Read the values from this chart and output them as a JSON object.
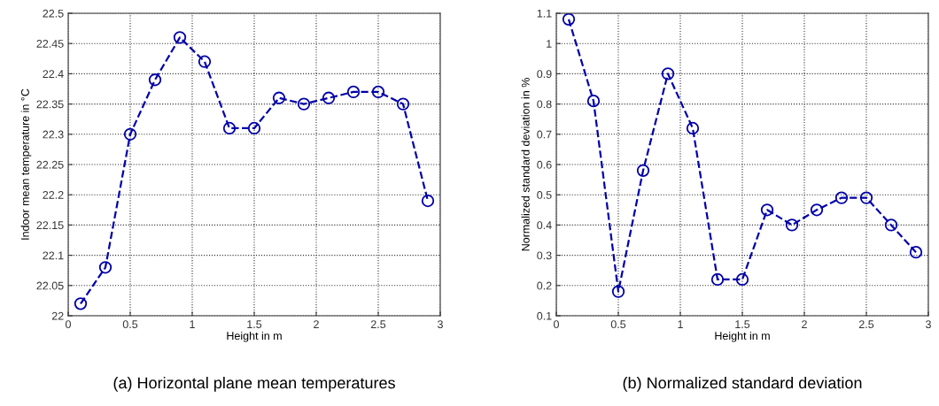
{
  "chart_data": [
    {
      "type": "line",
      "title": "(a) Horizontal plane mean temperatures",
      "xlabel": "Height in m",
      "ylabel": "Indoor mean temperature in °C",
      "x": [
        0.1,
        0.3,
        0.5,
        0.7,
        0.9,
        1.1,
        1.3,
        1.5,
        1.7,
        1.9,
        2.1,
        2.3,
        2.5,
        2.7,
        2.9
      ],
      "series": [
        {
          "color": "#0000a8",
          "values": [
            22.02,
            22.08,
            22.3,
            22.39,
            22.46,
            22.42,
            22.31,
            22.31,
            22.36,
            22.35,
            22.36,
            22.37,
            22.37,
            22.35,
            22.19
          ]
        }
      ],
      "xlim": [
        0,
        3
      ],
      "xticks": [
        0,
        0.5,
        1,
        1.5,
        2,
        2.5,
        3
      ],
      "ylim": [
        22,
        22.5
      ],
      "yticks": [
        22,
        22.05,
        22.1,
        22.15,
        22.2,
        22.25,
        22.3,
        22.35,
        22.4,
        22.45,
        22.5
      ],
      "grid": true,
      "marker": "circle",
      "line_style": "dashed"
    },
    {
      "type": "line",
      "title": "(b) Normalized standard deviation",
      "xlabel": "Height in m",
      "ylabel": "Normalized standard deviation in %",
      "x": [
        0.1,
        0.3,
        0.5,
        0.7,
        0.9,
        1.1,
        1.3,
        1.5,
        1.7,
        1.9,
        2.1,
        2.3,
        2.5,
        2.7,
        2.9
      ],
      "series": [
        {
          "color": "#0000a8",
          "values": [
            1.08,
            0.81,
            0.18,
            0.58,
            0.9,
            0.72,
            0.22,
            0.22,
            0.45,
            0.4,
            0.45,
            0.49,
            0.49,
            0.4,
            0.31
          ]
        }
      ],
      "xlim": [
        0,
        3
      ],
      "xticks": [
        0,
        0.5,
        1,
        1.5,
        2,
        2.5,
        3
      ],
      "ylim": [
        0.1,
        1.1
      ],
      "yticks": [
        0.1,
        0.2,
        0.3,
        0.4,
        0.5,
        0.6,
        0.7,
        0.8,
        0.9,
        1,
        1.1
      ],
      "grid": true,
      "marker": "circle",
      "line_style": "dashed"
    }
  ]
}
